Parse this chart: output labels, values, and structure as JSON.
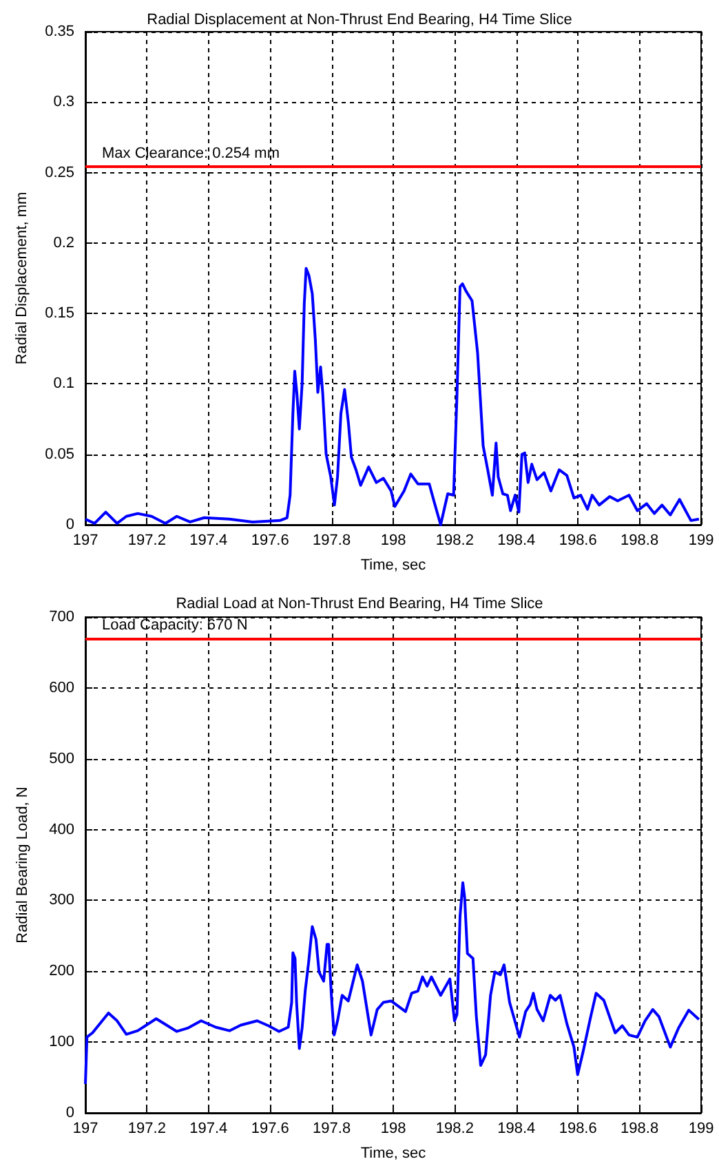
{
  "chart_data": [
    {
      "type": "line",
      "title": "Radial Displacement at Non-Thrust End Bearing, H4 Time Slice",
      "xlabel": "Time, sec",
      "ylabel": "Radial Displacement, mm",
      "x": [
        197.0,
        197.03,
        197.066,
        197.103,
        197.133,
        197.17,
        197.215,
        197.26,
        197.297,
        197.34,
        197.386,
        197.468,
        197.543,
        197.632,
        197.655,
        197.665,
        197.674,
        197.68,
        197.687,
        197.695,
        197.704,
        197.711,
        197.717,
        197.726,
        197.737,
        197.747,
        197.755,
        197.764,
        197.771,
        197.782,
        197.797,
        197.809,
        197.819,
        197.83,
        197.842,
        197.854,
        197.864,
        197.879,
        197.894,
        197.92,
        197.945,
        197.968,
        197.993,
        198.005,
        198.035,
        198.057,
        198.08,
        198.117,
        198.132,
        198.154,
        198.177,
        198.196,
        198.207,
        198.217,
        198.225,
        198.236,
        198.256,
        198.274,
        198.292,
        198.306,
        198.322,
        198.334,
        198.341,
        198.356,
        198.371,
        198.381,
        198.396,
        198.408,
        198.418,
        198.427,
        198.438,
        198.45,
        198.467,
        198.49,
        198.512,
        198.539,
        198.564,
        198.587,
        198.609,
        198.631,
        198.646,
        198.669,
        198.703,
        198.729,
        198.766,
        198.793,
        198.823,
        198.848,
        198.873,
        198.9,
        198.93,
        198.967,
        198.993
      ],
      "series": [
        {
          "color": "#0000ff",
          "values": [
            0.004,
            0.001,
            0.009,
            0.001,
            0.006,
            0.008,
            0.006,
            0.001,
            0.006,
            0.002,
            0.005,
            0.004,
            0.002,
            0.003,
            0.005,
            0.021,
            0.079,
            0.109,
            0.093,
            0.068,
            0.1,
            0.157,
            0.182,
            0.177,
            0.164,
            0.131,
            0.094,
            0.112,
            0.093,
            0.05,
            0.034,
            0.014,
            0.034,
            0.079,
            0.096,
            0.073,
            0.048,
            0.039,
            0.028,
            0.041,
            0.03,
            0.033,
            0.024,
            0.013,
            0.024,
            0.036,
            0.029,
            0.029,
            0.017,
            0.0,
            0.022,
            0.021,
            0.092,
            0.169,
            0.171,
            0.166,
            0.159,
            0.122,
            0.056,
            0.04,
            0.021,
            0.058,
            0.034,
            0.022,
            0.021,
            0.01,
            0.021,
            0.009,
            0.05,
            0.051,
            0.03,
            0.043,
            0.032,
            0.037,
            0.024,
            0.039,
            0.035,
            0.019,
            0.021,
            0.011,
            0.021,
            0.014,
            0.02,
            0.017,
            0.021,
            0.01,
            0.015,
            0.008,
            0.014,
            0.007,
            0.018,
            0.003,
            0.004
          ]
        }
      ],
      "xlim": [
        197,
        199
      ],
      "xticks": [
        197,
        197.2,
        197.4,
        197.6,
        197.8,
        198,
        198.2,
        198.4,
        198.6,
        198.8,
        199
      ],
      "ylim": [
        0,
        0.35
      ],
      "yticks": [
        0,
        0.05,
        0.1,
        0.15,
        0.2,
        0.25,
        0.3,
        0.35
      ],
      "ref_lines": [
        {
          "axis": "y",
          "value": 0.254,
          "label": "Max Clearance: 0.254 mm",
          "color": "#ff0000"
        }
      ],
      "grid": true
    },
    {
      "type": "line",
      "title": "Radial Load at Non-Thrust End Bearing, H4 Time Slice",
      "xlabel": "Time, sec",
      "ylabel": "Radial Bearing Load, N",
      "x": [
        197.0,
        197.005,
        197.023,
        197.075,
        197.103,
        197.133,
        197.17,
        197.23,
        197.26,
        197.297,
        197.334,
        197.376,
        197.423,
        197.468,
        197.505,
        197.558,
        197.595,
        197.629,
        197.659,
        197.67,
        197.674,
        197.681,
        197.686,
        197.695,
        197.704,
        197.714,
        197.725,
        197.737,
        197.749,
        197.759,
        197.774,
        197.785,
        197.79,
        197.799,
        197.808,
        197.819,
        197.834,
        197.854,
        197.883,
        197.9,
        197.928,
        197.948,
        197.968,
        197.993,
        198.0,
        198.04,
        198.06,
        198.08,
        198.095,
        198.11,
        198.124,
        198.154,
        198.184,
        198.199,
        198.207,
        198.217,
        198.226,
        198.232,
        198.241,
        198.259,
        198.27,
        198.284,
        198.3,
        198.316,
        198.33,
        198.348,
        198.36,
        198.378,
        198.41,
        198.43,
        198.445,
        198.455,
        198.467,
        198.487,
        198.51,
        198.527,
        198.542,
        198.564,
        198.587,
        198.599,
        198.617,
        198.64,
        198.659,
        198.684,
        198.721,
        198.744,
        198.766,
        198.793,
        198.818,
        198.843,
        198.863,
        198.9,
        198.927,
        198.96,
        198.993
      ],
      "series": [
        {
          "color": "#0000ff",
          "values": [
            41,
            107,
            113,
            141,
            130,
            111,
            116,
            133,
            125,
            115,
            120,
            130,
            121,
            116,
            124,
            130,
            123,
            115,
            121,
            156,
            226,
            218,
            156,
            91,
            120,
            172,
            212,
            263,
            245,
            199,
            186,
            238,
            238,
            166,
            110,
            130,
            166,
            158,
            209,
            186,
            110,
            146,
            156,
            158,
            156,
            143,
            169,
            172,
            192,
            179,
            192,
            166,
            189,
            130,
            139,
            278,
            325,
            304,
            225,
            218,
            136,
            67,
            82,
            166,
            199,
            195,
            209,
            156,
            107,
            143,
            153,
            169,
            146,
            130,
            166,
            159,
            166,
            126,
            93,
            54,
            87,
            133,
            169,
            159,
            113,
            123,
            110,
            107,
            130,
            146,
            136,
            93,
            120,
            145,
            132
          ]
        }
      ],
      "xlim": [
        197,
        199
      ],
      "xticks": [
        197,
        197.2,
        197.4,
        197.6,
        197.8,
        198,
        198.2,
        198.4,
        198.6,
        198.8,
        199
      ],
      "ylim": [
        0,
        700
      ],
      "yticks": [
        0,
        100,
        200,
        300,
        400,
        500,
        600,
        700
      ],
      "ref_lines": [
        {
          "axis": "y",
          "value": 670,
          "label": "Load Capacity: 670 N",
          "color": "#ff0000"
        }
      ],
      "grid": true
    }
  ]
}
